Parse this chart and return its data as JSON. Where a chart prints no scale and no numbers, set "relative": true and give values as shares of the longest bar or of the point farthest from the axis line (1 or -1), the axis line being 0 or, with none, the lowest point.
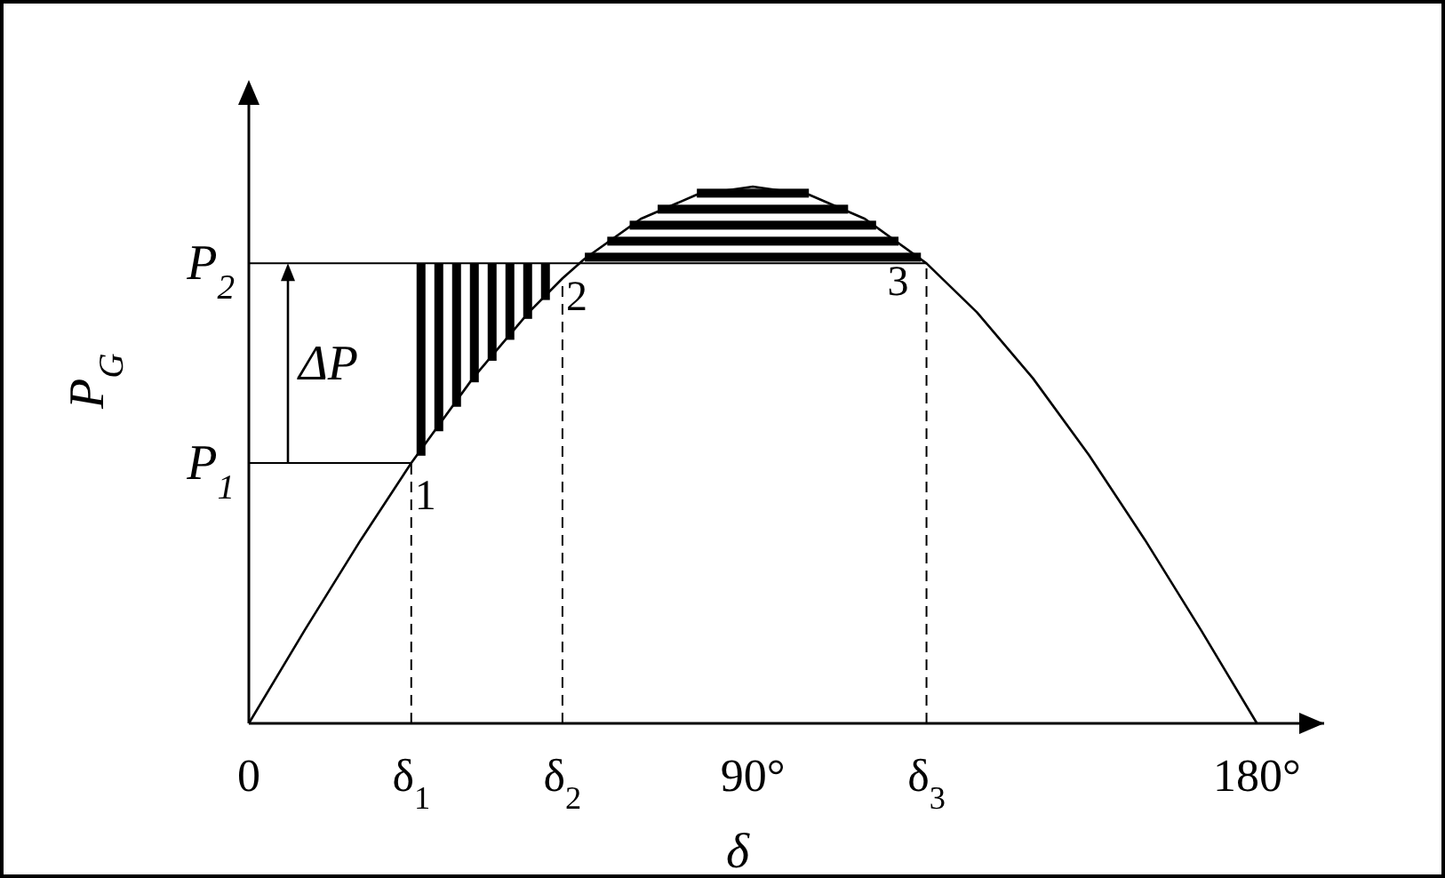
{
  "chart_data": {
    "type": "line",
    "relative": true,
    "xlabel": "δ",
    "ylabel": "P$_{G}$",
    "x": [
      0,
      10,
      20,
      29,
      40,
      50,
      56,
      60,
      70,
      80,
      90,
      100,
      110,
      121,
      130,
      140,
      150,
      160,
      170,
      180
    ],
    "series": [
      {
        "color": "#000000",
        "values": [
          0,
          0.174,
          0.342,
          0.485,
          0.643,
          0.766,
          0.829,
          0.866,
          0.94,
          0.985,
          1,
          0.985,
          0.94,
          0.857,
          0.766,
          0.643,
          0.5,
          0.342,
          0.174,
          0
        ]
      }
    ],
    "xlim": [
      0,
      192
    ],
    "xticks": [
      0,
      {
        "value": 90,
        "label": "90°"
      },
      {
        "value": 180,
        "label": "180°"
      }
    ],
    "ref_lines": [
      {
        "axis": "x",
        "value": 29,
        "label": "δ$_{1}$",
        "line_style": "dashed"
      },
      {
        "axis": "x",
        "value": 56,
        "label": "δ$_{2}$",
        "line_style": "dashed"
      },
      {
        "axis": "x",
        "value": 121,
        "label": "δ$_{3}$",
        "line_style": "dashed"
      },
      {
        "axis": "y",
        "value": 0.485,
        "label": "P$_{1}$",
        "line_style": "solid"
      },
      {
        "axis": "y",
        "value": 0.857,
        "label": "P$_{2}$",
        "line_style": "solid"
      }
    ],
    "annotations": [
      "ΔP",
      {
        "text": "1",
        "x": 29,
        "y": 0.485
      },
      {
        "text": "2",
        "x": 56,
        "y": 0.829
      },
      {
        "text": "3",
        "x": 121,
        "y": 0.857
      }
    ],
    "marker": "none",
    "line_style": "solid"
  }
}
